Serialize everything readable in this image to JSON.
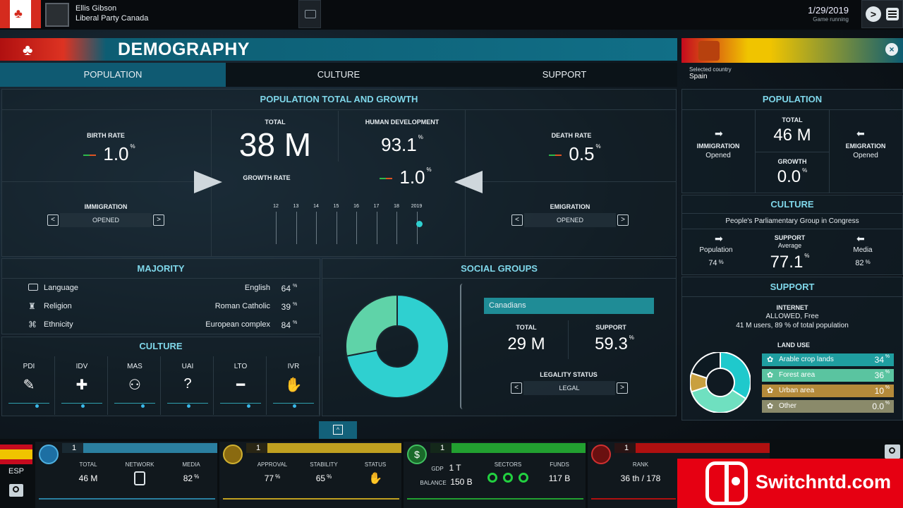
{
  "topbar": {
    "leader_name": "Ellis Gibson",
    "party": "Liberal Party Canada",
    "date": "1/29/2019",
    "status": "Game running"
  },
  "panel": {
    "title": "DEMOGRAPHY",
    "tabs": [
      "POPULATION",
      "CULTURE",
      "SUPPORT"
    ]
  },
  "pop": {
    "header": "POPULATION TOTAL AND GROWTH",
    "birth_rate_label": "BIRTH RATE",
    "birth_rate": "1.0",
    "birth_unit": "%",
    "total_label": "TOTAL",
    "total": "38 M",
    "hd_label": "HUMAN DEVELOPMENT",
    "hd": "93.1",
    "hd_unit": "%",
    "growth_label": "GROWTH RATE",
    "growth": "1.0",
    "growth_unit": "%",
    "death_rate_label": "DEATH RATE",
    "death_rate": "0.5",
    "death_unit": "%",
    "immigration_label": "IMMIGRATION",
    "immigration": "OPENED",
    "emigration_label": "EMIGRATION",
    "emigration": "OPENED",
    "years": [
      "12",
      "13",
      "14",
      "15",
      "16",
      "17",
      "18",
      "2019"
    ]
  },
  "majority": {
    "header": "MAJORITY",
    "rows": [
      {
        "label": "Language",
        "value": "English",
        "pct": "64"
      },
      {
        "label": "Religion",
        "value": "Roman Catholic",
        "pct": "39"
      },
      {
        "label": "Ethnicity",
        "value": "European complex",
        "pct": "84"
      }
    ]
  },
  "culture": {
    "header": "CULTURE",
    "dims": [
      "PDI",
      "IDV",
      "MAS",
      "UAI",
      "LTO",
      "IVR"
    ]
  },
  "social": {
    "header": "SOCIAL GROUPS",
    "group": "Canadians",
    "total_label": "TOTAL",
    "total": "29 M",
    "support_label": "SUPPORT",
    "support": "59.3",
    "legality_label": "LEGALITY STATUS",
    "legality": "LEGAL",
    "donut": [
      {
        "value": 72,
        "color": "#2fd0d0"
      },
      {
        "value": 28,
        "color": "#5fd3a8"
      }
    ]
  },
  "right": {
    "selected_label": "Selected country",
    "country": "Spain",
    "pop_header": "POPULATION",
    "imm_label": "IMMIGRATION",
    "imm_state": "Opened",
    "total_label": "TOTAL",
    "total": "46 M",
    "growth_label": "GROWTH",
    "growth": "0.0",
    "emi_label": "EMIGRATION",
    "emi_state": "Opened",
    "culture_header": "CULTURE",
    "group": "People's Parliamentary Group in Congress",
    "pop_lbl": "Population",
    "pop_pct": "74",
    "support_lbl": "SUPPORT",
    "avg_lbl": "Average",
    "support": "77.1",
    "media_lbl": "Media",
    "media_pct": "82",
    "support_header": "SUPPORT",
    "internet_lbl": "INTERNET",
    "internet_state": "ALLOWED, Free",
    "internet_users": "41 M users, 89 % of total population",
    "land_lbl": "LAND USE",
    "land": [
      {
        "label": "Arable crop lands",
        "pct": "34",
        "color": "#1f9ea0"
      },
      {
        "label": "Forest area",
        "pct": "36",
        "color": "#5ac4a0"
      },
      {
        "label": "Urban area",
        "pct": "10",
        "color": "#b48a3a"
      },
      {
        "label": "Other",
        "pct": "0.0",
        "color": "#8a8a6a"
      }
    ],
    "land_donut": [
      {
        "value": 34,
        "color": "#1fc9cc"
      },
      {
        "value": 36,
        "color": "#6fe0c0"
      },
      {
        "value": 10,
        "color": "#c9a040"
      },
      {
        "value": 20,
        "color": "#0d1a22"
      }
    ]
  },
  "bottom": {
    "country_code": "ESP",
    "s1": {
      "num": "1",
      "total_lbl": "TOTAL",
      "total": "46 M",
      "network_lbl": "NETWORK",
      "media_lbl": "MEDIA",
      "media": "82"
    },
    "s2": {
      "num": "1",
      "approval_lbl": "APPROVAL",
      "approval": "77",
      "stability_lbl": "STABILITY",
      "stability": "65",
      "status_lbl": "STATUS"
    },
    "s3": {
      "num": "1",
      "gdp_lbl": "GDP",
      "gdp": "1 T",
      "balance_lbl": "BALANCE",
      "balance": "150 B",
      "sectors_lbl": "SECTORS",
      "funds_lbl": "FUNDS",
      "funds": "117 B"
    },
    "s4": {
      "num": "1",
      "rank_lbl": "RANK",
      "rank": "36 th / 178"
    }
  },
  "watermark": "Switchntd.com",
  "pct": "%"
}
